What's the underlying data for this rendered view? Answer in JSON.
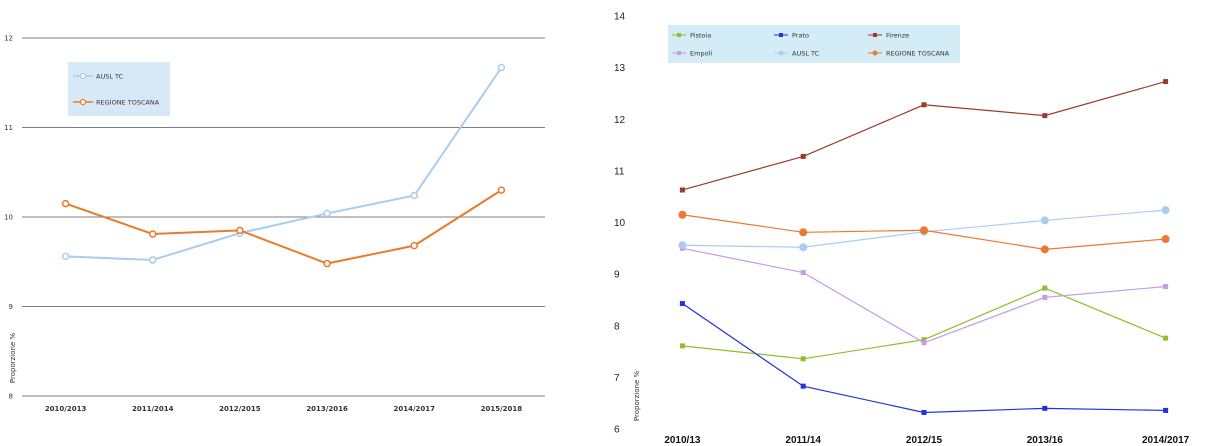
{
  "chart_data": [
    {
      "type": "line",
      "title": "",
      "xlabel": "",
      "ylabel": "Proporzione %",
      "ylim": [
        8,
        12
      ],
      "yticks": [
        "8",
        "9",
        "10",
        "11",
        "12"
      ],
      "grid": true,
      "legend_position": "top-left",
      "categories": [
        "2010/2013",
        "2011/2014",
        "2012/2015",
        "2013/2016",
        "2014/2017",
        "2015/2018"
      ],
      "series": [
        {
          "name": "AUSL TC",
          "color": "#a9cdf0",
          "values": [
            9.56,
            9.52,
            9.82,
            10.04,
            10.24,
            11.67
          ]
        },
        {
          "name": "REGIONE TOSCANA",
          "color": "#e87b2c",
          "values": [
            10.15,
            9.81,
            9.85,
            9.48,
            9.68,
            10.3
          ]
        }
      ]
    },
    {
      "type": "line",
      "title": "",
      "xlabel": "",
      "ylabel": "Proporzione %",
      "ylim": [
        6,
        14
      ],
      "yticks": [
        "6",
        "7",
        "8",
        "9",
        "10",
        "11",
        "12",
        "13",
        "14"
      ],
      "grid": false,
      "legend_position": "top-left",
      "categories": [
        "2010/13",
        "2011/14",
        "2012/15",
        "2013/16",
        "2014/2017"
      ],
      "series": [
        {
          "name": "Pistoia",
          "color": "#8dbf2e",
          "marker": "square",
          "values": [
            7.61,
            7.36,
            7.73,
            8.73,
            7.76
          ]
        },
        {
          "name": "Prato",
          "color": "#2233dd",
          "marker": "square",
          "values": [
            8.43,
            6.83,
            6.32,
            6.4,
            6.36
          ]
        },
        {
          "name": "Firenze",
          "color": "#9c3a2e",
          "marker": "square",
          "values": [
            10.63,
            11.28,
            12.28,
            12.07,
            12.73
          ]
        },
        {
          "name": "Empoli",
          "color": "#c79be6",
          "marker": "square",
          "values": [
            9.5,
            9.03,
            7.67,
            8.55,
            8.76
          ]
        },
        {
          "name": "AUSL TC",
          "color": "#a9cdf0",
          "marker": "circle",
          "values": [
            9.56,
            9.52,
            9.82,
            10.04,
            10.24
          ]
        },
        {
          "name": "REGIONE TOSCANA",
          "color": "#ee7733",
          "marker": "circle",
          "values": [
            10.15,
            9.81,
            9.85,
            9.48,
            9.68
          ]
        }
      ]
    }
  ]
}
